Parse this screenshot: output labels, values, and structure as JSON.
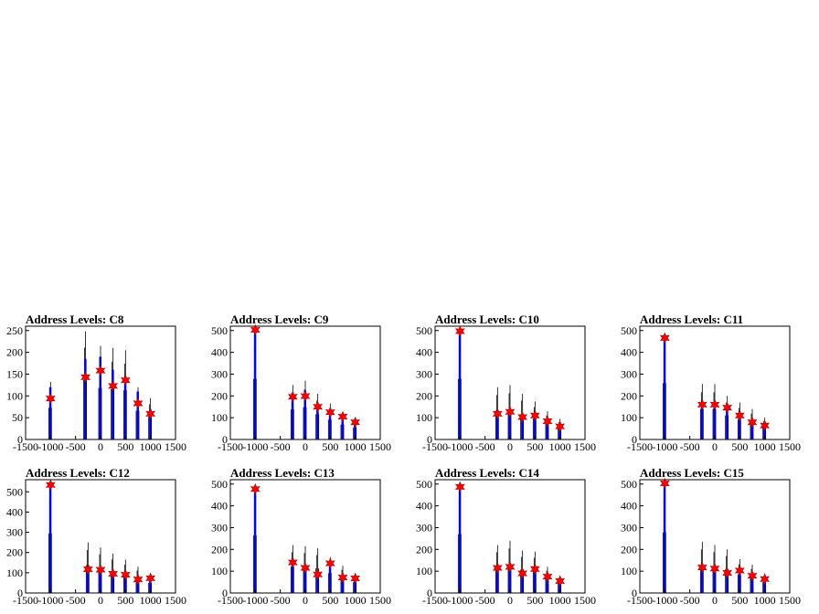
{
  "chart_data": [
    {
      "type": "bar",
      "title": "Address Levels: C8",
      "xlim": [
        -1500,
        1500
      ],
      "ylim": [
        0,
        260
      ],
      "yticks": [
        0,
        50,
        100,
        150,
        200,
        250
      ],
      "x": [
        -1000,
        -300,
        0,
        250,
        500,
        750,
        1000
      ],
      "hist_max": [
        132,
        248,
        215,
        210,
        205,
        120,
        95
      ],
      "hist_fill": [
        120,
        185,
        190,
        160,
        140,
        110,
        70
      ],
      "peaks": [
        94,
        143,
        158,
        123,
        136,
        83,
        59
      ],
      "show_ylabel_zero": true
    },
    {
      "type": "bar",
      "title": "Address Levels: C9",
      "xlim": [
        -1500,
        1500
      ],
      "ylim": [
        0,
        520
      ],
      "yticks": [
        0,
        100,
        200,
        300,
        400,
        500
      ],
      "x": [
        -1000,
        -250,
        0,
        250,
        500,
        750,
        1000
      ],
      "hist_max": [
        505,
        250,
        270,
        210,
        165,
        125,
        100
      ],
      "hist_fill": [
        500,
        215,
        225,
        160,
        135,
        110,
        85
      ],
      "peaks": [
        503,
        196,
        199,
        150,
        125,
        105,
        79
      ]
    },
    {
      "type": "bar",
      "title": "Address Levels: C10",
      "xlim": [
        -1500,
        1500
      ],
      "ylim": [
        0,
        520
      ],
      "yticks": [
        0,
        100,
        200,
        300,
        400,
        500
      ],
      "x": [
        -1000,
        -250,
        0,
        250,
        500,
        750,
        1000
      ],
      "hist_max": [
        505,
        240,
        250,
        210,
        175,
        130,
        95
      ],
      "hist_fill": [
        495,
        120,
        140,
        110,
        115,
        95,
        70
      ],
      "peaks": [
        497,
        118,
        127,
        103,
        110,
        84,
        60
      ]
    },
    {
      "type": "bar",
      "title": "Address Levels: C11",
      "xlim": [
        -1500,
        1500
      ],
      "ylim": [
        0,
        520
      ],
      "yticks": [
        0,
        100,
        200,
        300,
        400,
        500
      ],
      "x": [
        -1000,
        -250,
        0,
        250,
        500,
        750,
        1000
      ],
      "hist_max": [
        470,
        255,
        255,
        200,
        170,
        140,
        100
      ],
      "hist_fill": [
        460,
        170,
        165,
        150,
        115,
        85,
        70
      ],
      "peaks": [
        466,
        160,
        160,
        146,
        110,
        79,
        64
      ]
    },
    {
      "type": "bar",
      "title": "Address Levels: C12",
      "xlim": [
        -1500,
        1500
      ],
      "ylim": [
        0,
        560
      ],
      "yticks": [
        0,
        100,
        200,
        300,
        400,
        500
      ],
      "x": [
        -1000,
        -250,
        0,
        250,
        500,
        750,
        1000
      ],
      "hist_max": [
        535,
        250,
        225,
        195,
        165,
        130,
        90
      ],
      "hist_fill": [
        530,
        120,
        115,
        100,
        95,
        75,
        70
      ],
      "peaks": [
        534,
        117,
        115,
        95,
        90,
        67,
        73
      ]
    },
    {
      "type": "bar",
      "title": "Address Levels: C13",
      "xlim": [
        -1500,
        1500
      ],
      "ylim": [
        0,
        520
      ],
      "yticks": [
        0,
        100,
        200,
        300,
        400,
        500
      ],
      "x": [
        -1000,
        -250,
        0,
        250,
        500,
        750,
        1000
      ],
      "hist_max": [
        480,
        220,
        215,
        205,
        165,
        125,
        90
      ],
      "hist_fill": [
        475,
        145,
        120,
        90,
        140,
        75,
        70
      ],
      "peaks": [
        477,
        140,
        115,
        85,
        136,
        71,
        67
      ]
    },
    {
      "type": "bar",
      "title": "Address Levels: C14",
      "xlim": [
        -1500,
        1500
      ],
      "ylim": [
        0,
        520
      ],
      "yticks": [
        0,
        100,
        200,
        300,
        400,
        500
      ],
      "x": [
        -1000,
        -250,
        0,
        250,
        500,
        750,
        1000
      ],
      "hist_max": [
        490,
        220,
        240,
        195,
        190,
        120,
        80
      ],
      "hist_fill": [
        480,
        120,
        125,
        95,
        115,
        80,
        60
      ],
      "peaks": [
        487,
        115,
        120,
        90,
        110,
        75,
        55
      ]
    },
    {
      "type": "bar",
      "title": "Address Levels: C15",
      "xlim": [
        -1500,
        1500
      ],
      "ylim": [
        0,
        520
      ],
      "yticks": [
        0,
        100,
        200,
        300,
        400,
        500
      ],
      "x": [
        -1000,
        -250,
        0,
        250,
        500,
        750,
        1000
      ],
      "hist_max": [
        505,
        235,
        220,
        200,
        155,
        130,
        90
      ],
      "hist_fill": [
        500,
        120,
        115,
        95,
        105,
        80,
        70
      ],
      "peaks": [
        503,
        117,
        112,
        92,
        103,
        79,
        64
      ]
    }
  ],
  "xticks": [
    -1500,
    -1000,
    -500,
    0,
    500,
    1000,
    1500
  ],
  "colors": {
    "axis": "#000000",
    "hist_line": "#000000",
    "fill": "#0000ff",
    "marker": "#ff0000"
  }
}
